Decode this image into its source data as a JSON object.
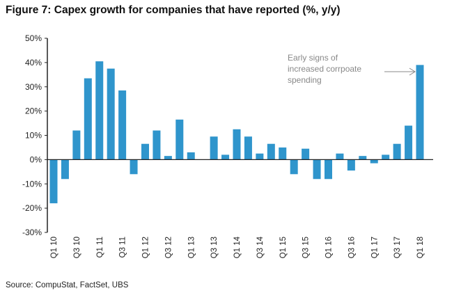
{
  "title": "Figure 7: Capex growth for companies that have reported (%, y/y)",
  "source": "Source: CompuStat, FactSet, UBS",
  "colors": {
    "bar": "#2f95cc",
    "axis": "#222222",
    "annotation": "#888888"
  },
  "chart_data": {
    "type": "bar",
    "title": "Figure 7: Capex growth for companies that have reported (%, y/y)",
    "ylim": [
      -30,
      50
    ],
    "yticks": [
      "-30%",
      "-20%",
      "-10%",
      "0%",
      "10%",
      "20%",
      "30%",
      "40%",
      "50%"
    ],
    "ytick_values": [
      -30,
      -20,
      -10,
      0,
      10,
      20,
      30,
      40,
      50
    ],
    "grid": false,
    "categories": [
      "Q1 10",
      "Q2 10",
      "Q3 10",
      "Q4 10",
      "Q1 11",
      "Q2 11",
      "Q3 11",
      "Q4 11",
      "Q1 12",
      "Q2 12",
      "Q3 12",
      "Q4 12",
      "Q1 13",
      "Q2 13",
      "Q3 13",
      "Q4 13",
      "Q1 14",
      "Q2 14",
      "Q3 14",
      "Q4 14",
      "Q1 15",
      "Q2 15",
      "Q3 15",
      "Q4 15",
      "Q1 16",
      "Q2 16",
      "Q3 16",
      "Q4 16",
      "Q1 17",
      "Q2 17",
      "Q3 17",
      "Q4 17",
      "Q1 18"
    ],
    "xtick_labels": [
      "Q1 10",
      "Q3 10",
      "Q1 11",
      "Q3 11",
      "Q1 12",
      "Q3 12",
      "Q1 13",
      "Q3 13",
      "Q1 14",
      "Q3 14",
      "Q1 15",
      "Q3 15",
      "Q1 16",
      "Q3 16",
      "Q1 17",
      "Q3 17",
      "Q1 18"
    ],
    "values": [
      -18,
      -8,
      12,
      33.5,
      40.5,
      37.5,
      28.5,
      -6,
      6.5,
      12,
      1.5,
      16.5,
      3,
      0,
      9.5,
      2,
      12.5,
      9.5,
      2.5,
      6.5,
      5,
      -6,
      4.5,
      -8,
      -8,
      2.5,
      -4.5,
      1.5,
      -1.5,
      2,
      6.5,
      14,
      39
    ],
    "annotation": {
      "lines": [
        "Early signs of",
        "increased corrpoate",
        "spending"
      ],
      "points_to": "Q1 18"
    }
  }
}
